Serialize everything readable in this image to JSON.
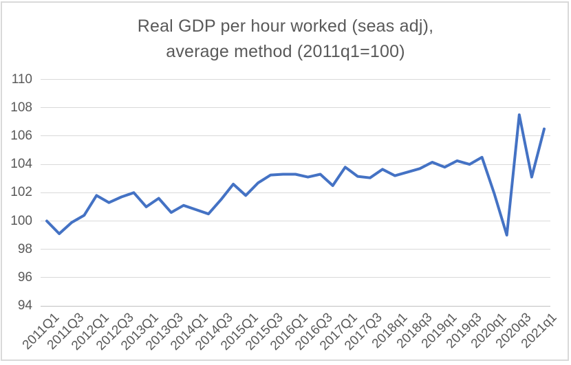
{
  "chart": {
    "title_line1": "Real GDP per hour worked (seas adj),",
    "title_line2": "average method (2011q1=100)"
  },
  "chart_data": {
    "type": "line",
    "title": "Real GDP per hour worked (seas adj), average method (2011q1=100)",
    "categories": [
      "2011Q1",
      "2011Q2",
      "2011Q3",
      "2011Q4",
      "2012Q1",
      "2012Q2",
      "2012Q3",
      "2012Q4",
      "2013Q1",
      "2013Q2",
      "2013Q3",
      "2013Q4",
      "2014Q1",
      "2014Q2",
      "2014Q3",
      "2014Q4",
      "2015Q1",
      "2015Q2",
      "2015Q3",
      "2015Q4",
      "2016Q1",
      "2016Q2",
      "2016Q3",
      "2016Q4",
      "2017Q1",
      "2017Q2",
      "2017Q3",
      "2017Q4",
      "2018q1",
      "2018q2",
      "2018q3",
      "2018q4",
      "2019q1",
      "2019q2",
      "2019q3",
      "2019q4",
      "2020q1",
      "2020q2",
      "2020q3",
      "2020q4",
      "2021q1"
    ],
    "values": [
      100.0,
      99.1,
      99.9,
      100.4,
      101.8,
      101.3,
      101.7,
      102.0,
      101.0,
      101.6,
      100.6,
      101.1,
      100.8,
      100.5,
      101.5,
      102.6,
      101.8,
      102.7,
      103.25,
      103.3,
      103.3,
      103.1,
      103.3,
      102.5,
      103.8,
      103.15,
      103.05,
      103.65,
      103.2,
      103.45,
      103.7,
      104.15,
      103.8,
      104.25,
      104.0,
      104.5,
      101.9,
      99.0,
      107.5,
      103.1,
      106.5
    ],
    "x_tick_labels": [
      "2011Q1",
      "2011Q3",
      "2012Q1",
      "2012Q3",
      "2013Q1",
      "2013Q3",
      "2014Q1",
      "2014Q3",
      "2015Q1",
      "2015Q3",
      "2016Q1",
      "2016Q3",
      "2017Q1",
      "2017Q3",
      "2018q1",
      "2018q3",
      "2019q1",
      "2019q3",
      "2020q1",
      "2020q3",
      "2021q1"
    ],
    "x_tick_every": 2,
    "y_ticks": [
      110,
      108,
      106,
      104,
      102,
      100,
      98,
      96,
      94
    ],
    "ylim": [
      94,
      110
    ],
    "xlabel": "",
    "ylabel": "",
    "grid": true,
    "legend": false,
    "line_color": "#4472C4",
    "text_color": "#595959",
    "gridline_color": "#D9D9D9",
    "axis_line_color": "#BFBFBF",
    "border_color": "#D9D9D9"
  }
}
